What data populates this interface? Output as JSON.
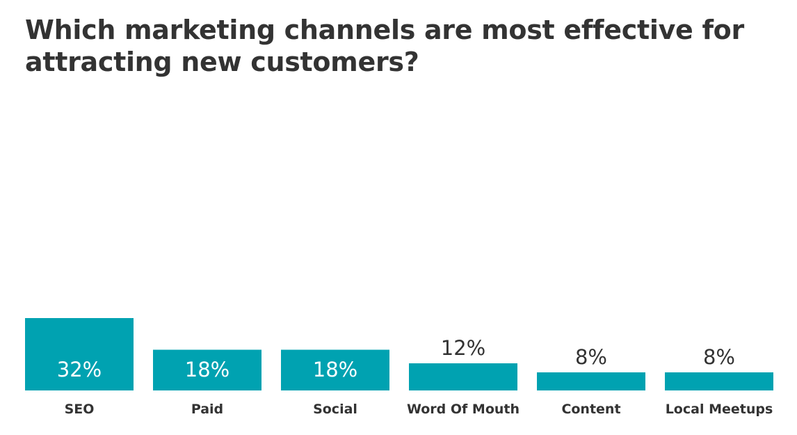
{
  "title": "Which marketing channels are most effective for attracting new customers?",
  "colors": {
    "bar": "#00a2b1",
    "title_text": "#333333",
    "inside_label": "#ffffff",
    "outside_label": "#333333"
  },
  "chart_data": {
    "type": "bar",
    "title": "Which marketing channels are most effective for attracting new customers?",
    "categories": [
      "SEO",
      "Paid",
      "Social",
      "Word Of Mouth",
      "Content",
      "Local Meetups"
    ],
    "values": [
      32,
      18,
      18,
      12,
      8,
      8
    ],
    "value_labels": [
      "32%",
      "18%",
      "18%",
      "12%",
      "8%",
      "8%"
    ],
    "unit": "%",
    "xlabel": "",
    "ylabel": "",
    "grid": false,
    "legend": "none"
  }
}
